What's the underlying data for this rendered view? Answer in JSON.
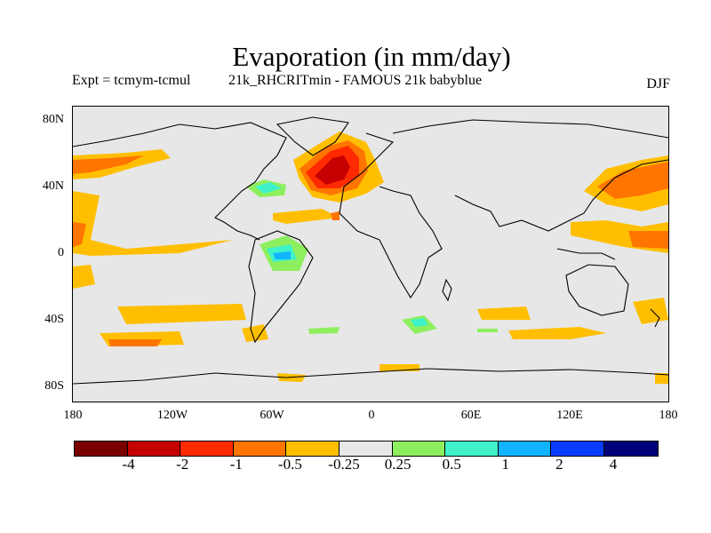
{
  "title": "Evaporation (in mm/day)",
  "expt_label": "Expt = tcmym-tcmul",
  "run_name": "21k_RHCRITmin - FAMOUS 21k babyblue",
  "season": "DJF",
  "map": {
    "projection": "cylindrical equidistant",
    "lon_range": [
      -180,
      180
    ],
    "lat_range": [
      -90,
      90
    ],
    "ocean_background": "#e7e7e7",
    "coastline_color": "#000000",
    "lat_labels": [
      {
        "lat": 80,
        "text": "80N"
      },
      {
        "lat": 40,
        "text": "40N"
      },
      {
        "lat": 0,
        "text": "0"
      },
      {
        "lat": -40,
        "text": "40S"
      },
      {
        "lat": -80,
        "text": "80S"
      }
    ],
    "lon_labels": [
      {
        "lon": -180,
        "text": "180"
      },
      {
        "lon": -120,
        "text": "120W"
      },
      {
        "lon": -60,
        "text": "60W"
      },
      {
        "lon": 0,
        "text": "0"
      },
      {
        "lon": 60,
        "text": "60E"
      },
      {
        "lon": 120,
        "text": "120E"
      },
      {
        "lon": 180,
        "text": "180"
      }
    ],
    "anomaly_regions": [
      {
        "name": "north-atlantic-max",
        "level": "-2",
        "lon": -30,
        "lat": 45
      },
      {
        "name": "north-atlantic-core",
        "level": "-4",
        "lon": -35,
        "lat": 46
      },
      {
        "name": "north-atlantic-positive",
        "level": "0.5",
        "lon": -62,
        "lat": 40
      },
      {
        "name": "amazon-positive",
        "level": "1",
        "lon": -57,
        "lat": 0
      },
      {
        "name": "southern-africa-positive",
        "level": "0.5",
        "lon": 30,
        "lat": -42
      },
      {
        "name": "north-pacific-west",
        "level": "-1",
        "lon": 165,
        "lat": 37
      },
      {
        "name": "north-pacific-east",
        "level": "-0.5",
        "lon": -160,
        "lat": 50
      },
      {
        "name": "subtropical-pacific",
        "level": "-0.5",
        "lon": -170,
        "lat": 12
      },
      {
        "name": "southern-ocean-pacific",
        "level": "-0.5",
        "lon": -140,
        "lat": -52
      }
    ]
  },
  "colorbar": {
    "colors": [
      "#7a0000",
      "#c60000",
      "#ff2a00",
      "#ff7500",
      "#ffbf00",
      "#e7e7e7",
      "#8eef5e",
      "#3ff2c9",
      "#12b4ff",
      "#0a3cff",
      "#00007a"
    ],
    "labels": [
      "-4",
      "-2",
      "-1",
      "-0.5",
      "-0.25",
      "0.25",
      "0.5",
      "1",
      "2",
      "4"
    ]
  }
}
